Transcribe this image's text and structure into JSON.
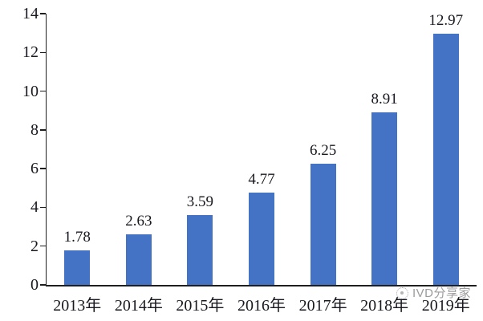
{
  "chart_data": {
    "type": "bar",
    "title": "",
    "xlabel": "",
    "ylabel": "",
    "categories": [
      "2013年",
      "2014年",
      "2015年",
      "2016年",
      "2017年",
      "2018年",
      "2019年"
    ],
    "series": [
      {
        "name": "value",
        "values": [
          1.78,
          2.63,
          3.59,
          4.77,
          6.25,
          8.91,
          12.97
        ],
        "value_labels": [
          "1.78",
          "2.63",
          "3.59",
          "4.77",
          "6.25",
          "8.91",
          "12.97"
        ]
      }
    ],
    "ylim": [
      0,
      14
    ],
    "y_ticks": [
      0,
      2,
      4,
      6,
      8,
      10,
      12,
      14
    ],
    "grid": false,
    "legend_position": "none",
    "bar_color": "#4472C4",
    "axis_color": "#1f1f1f",
    "text_color": "#181820"
  },
  "watermark": {
    "icon": "circle-logo-icon",
    "text": "IVD分享家",
    "color": "#9c9c9c"
  }
}
